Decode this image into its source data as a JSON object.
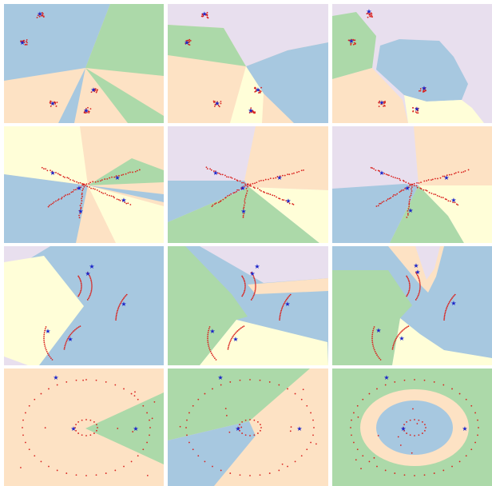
{
  "figure": {
    "rows": 4,
    "cols": 3,
    "colors": {
      "blue": "#a7c8e0",
      "green": "#acd9a9",
      "orange": "#fde2c4",
      "lavender": "#e8dfee",
      "yellow": "#fffed8",
      "data_point": "#d9231f",
      "center_marker": "#1a24c8"
    }
  }
}
